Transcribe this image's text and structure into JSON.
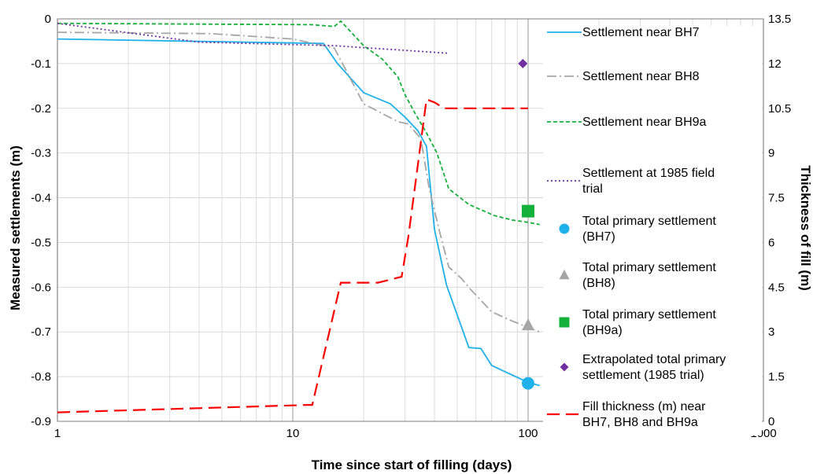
{
  "chart_data": {
    "type": "line",
    "xlabel": "Time since start of filling (days)",
    "ylabel": "Measured settlements (m)",
    "y2label": "Thickness of fill (m)",
    "x_scale": "log",
    "xlim": [
      1,
      1000
    ],
    "ylim": [
      -0.9,
      0
    ],
    "y2lim": [
      0,
      13.5
    ],
    "grid": true,
    "legend_position": "right",
    "x_ticks": [
      "1",
      "10",
      "100",
      "1000"
    ],
    "y_ticks": [
      "0",
      "-0.1",
      "-0.2",
      "-0.3",
      "-0.4",
      "-0.5",
      "-0.6",
      "-0.7",
      "-0.8",
      "-0.9"
    ],
    "y2_ticks": [
      "13.5",
      "12",
      "10.5",
      "9",
      "7.5",
      "6",
      "4.5",
      "3",
      "1.5",
      "0"
    ],
    "series": [
      {
        "name": "Settlement near BH7",
        "axis": "left",
        "style": "solid",
        "color": "#1FB1EA",
        "x": [
          1,
          13.5,
          15.5,
          20,
          26,
          30,
          34,
          37,
          40,
          45,
          56,
          63,
          70,
          100,
          112
        ],
        "y": [
          -0.045,
          -0.055,
          -0.1,
          -0.165,
          -0.19,
          -0.22,
          -0.25,
          -0.285,
          -0.47,
          -0.595,
          -0.735,
          -0.737,
          -0.775,
          -0.813,
          -0.82
        ]
      },
      {
        "name": "Settlement near BH8",
        "axis": "left",
        "style": "dashdot",
        "color": "#A6A6A6",
        "x": [
          1,
          4.5,
          10,
          15,
          20,
          28,
          31,
          35,
          38,
          42,
          46,
          52,
          57,
          70,
          85,
          100,
          112
        ],
        "y": [
          -0.03,
          -0.033,
          -0.045,
          -0.065,
          -0.19,
          -0.23,
          -0.235,
          -0.268,
          -0.38,
          -0.475,
          -0.555,
          -0.58,
          -0.605,
          -0.655,
          -0.675,
          -0.69,
          -0.7
        ]
      },
      {
        "name": "Settlement near BH9a",
        "axis": "left",
        "style": "dashed",
        "color": "#13B03A",
        "x": [
          1,
          12,
          15,
          16,
          20,
          24,
          28,
          30,
          33,
          37,
          41,
          46,
          56,
          72,
          86,
          100,
          112
        ],
        "y": [
          -0.01,
          -0.013,
          -0.017,
          -0.005,
          -0.06,
          -0.09,
          -0.13,
          -0.17,
          -0.21,
          -0.255,
          -0.3,
          -0.38,
          -0.415,
          -0.44,
          -0.45,
          -0.455,
          -0.46
        ]
      },
      {
        "name": "Settlement at 1985 field trial",
        "axis": "left",
        "style": "dotted",
        "color": "#7030A0",
        "x": [
          1,
          4,
          15,
          46
        ],
        "y": [
          -0.01,
          -0.052,
          -0.06,
          -0.077
        ]
      },
      {
        "name": "Fill thickness (m) near BH7, BH8 and BH9a",
        "axis": "right",
        "style": "longdash",
        "color": "#FF0000",
        "x": [
          1,
          11.7,
          12.1,
          16,
          23,
          29,
          31,
          37,
          40,
          44,
          48,
          100
        ],
        "y": [
          0.3,
          0.55,
          0.55,
          4.65,
          4.65,
          4.85,
          6.2,
          10.8,
          10.7,
          10.5,
          10.5,
          10.5
        ]
      }
    ],
    "points": [
      {
        "name": "Total primary settlement (BH7)",
        "marker": "circle",
        "color": "#1FB1EA",
        "x": 100,
        "y": -0.815
      },
      {
        "name": "Total primary settlement (BH8)",
        "marker": "triangle",
        "color": "#A6A6A6",
        "x": 100,
        "y": -0.685
      },
      {
        "name": "Total primary settlement (BH9a)",
        "marker": "square",
        "color": "#13B03A",
        "x": 100,
        "y": -0.43
      },
      {
        "name": "Extrapolated total primary settlement (1985 trial)",
        "marker": "diamond",
        "color": "#7030A0",
        "x": 95,
        "y": -0.1
      }
    ]
  },
  "legend": [
    {
      "lines": [
        "Settlement near BH7"
      ],
      "swatch": "line",
      "style": "solid",
      "color": "#1FB1EA"
    },
    {
      "lines": [
        "Settlement near BH8"
      ],
      "swatch": "line",
      "style": "dashdot",
      "color": "#A6A6A6"
    },
    {
      "lines": [
        "Settlement near BH9a"
      ],
      "swatch": "line",
      "style": "dashed",
      "color": "#13B03A"
    },
    {
      "lines": [
        "Settlement at 1985 field",
        "trial"
      ],
      "swatch": "line",
      "style": "dotted",
      "color": "#7030A0"
    },
    {
      "lines": [
        "Total primary settlement",
        "(BH7)"
      ],
      "swatch": "circle",
      "color": "#1FB1EA"
    },
    {
      "lines": [
        "Total primary settlement",
        "(BH8)"
      ],
      "swatch": "triangle",
      "color": "#A6A6A6"
    },
    {
      "lines": [
        "Total primary settlement",
        "(BH9a)"
      ],
      "swatch": "square",
      "color": "#13B03A"
    },
    {
      "lines": [
        "Extrapolated total primary",
        "settlement (1985 trial)"
      ],
      "swatch": "diamond",
      "color": "#7030A0"
    },
    {
      "lines": [
        "Fill thickness (m) near",
        "BH7, BH8 and BH9a"
      ],
      "swatch": "line",
      "style": "longdash",
      "color": "#FF0000"
    }
  ]
}
